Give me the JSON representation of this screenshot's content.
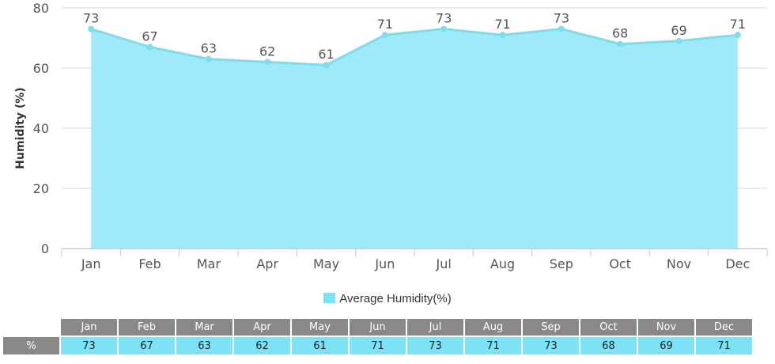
{
  "chart_data": {
    "type": "area",
    "categories": [
      "Jan",
      "Feb",
      "Mar",
      "Apr",
      "May",
      "Jun",
      "Jul",
      "Aug",
      "Sep",
      "Oct",
      "Nov",
      "Dec"
    ],
    "series": [
      {
        "name": "Average Humidity(%)",
        "values": [
          73,
          67,
          63,
          62,
          61,
          71,
          73,
          71,
          73,
          68,
          69,
          71
        ]
      }
    ],
    "xlabel": "",
    "ylabel": "Humidity (%)",
    "ylim": [
      0,
      80
    ],
    "yticks": [
      0,
      20,
      40,
      60,
      80
    ],
    "grid": true,
    "legend_position": "bottom",
    "fill_color": "#9eeaf8",
    "line_color": "#7ddcf0",
    "data_labels": true
  },
  "table": {
    "row_label": "%"
  },
  "colors": {
    "header_bg": "#898989",
    "cell_bg": "#7ee2f7",
    "grid": "#d8d8d8"
  }
}
